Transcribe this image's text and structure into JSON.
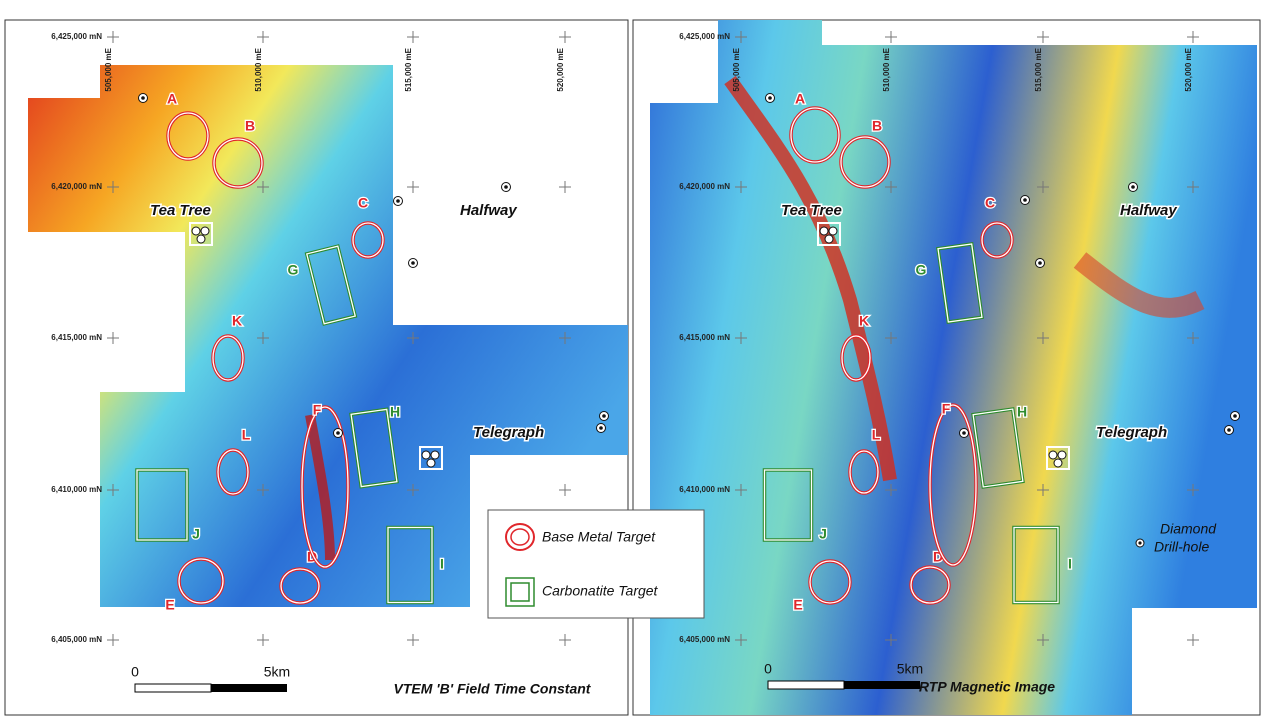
{
  "grid": {
    "northings": [
      "6,425,000 mN",
      "6,420,000 mN",
      "6,415,000 mN",
      "6,410,000 mN",
      "6,405,000 mN"
    ],
    "eastings": [
      "505,000 mE",
      "510,000 mE",
      "515,000 mE",
      "520,000 mE"
    ]
  },
  "places": [
    "Tea Tree",
    "Halfway",
    "Telegraph"
  ],
  "targets": {
    "base_metal": [
      "A",
      "B",
      "C",
      "D",
      "E",
      "F",
      "K",
      "L"
    ],
    "carbonatite": [
      "G",
      "H",
      "I",
      "J"
    ]
  },
  "panels": [
    {
      "title": "VTEM 'B' Field Time Constant",
      "scale": [
        "0",
        "5km"
      ]
    },
    {
      "title": "RTP Magnetic Image",
      "scale": [
        "0",
        "5km"
      ]
    }
  ],
  "legend": {
    "base_metal": "Base Metal Target",
    "carbonatite": "Carbonatite Target",
    "drill_hole": [
      "Diamond",
      "Drill-hole"
    ]
  }
}
